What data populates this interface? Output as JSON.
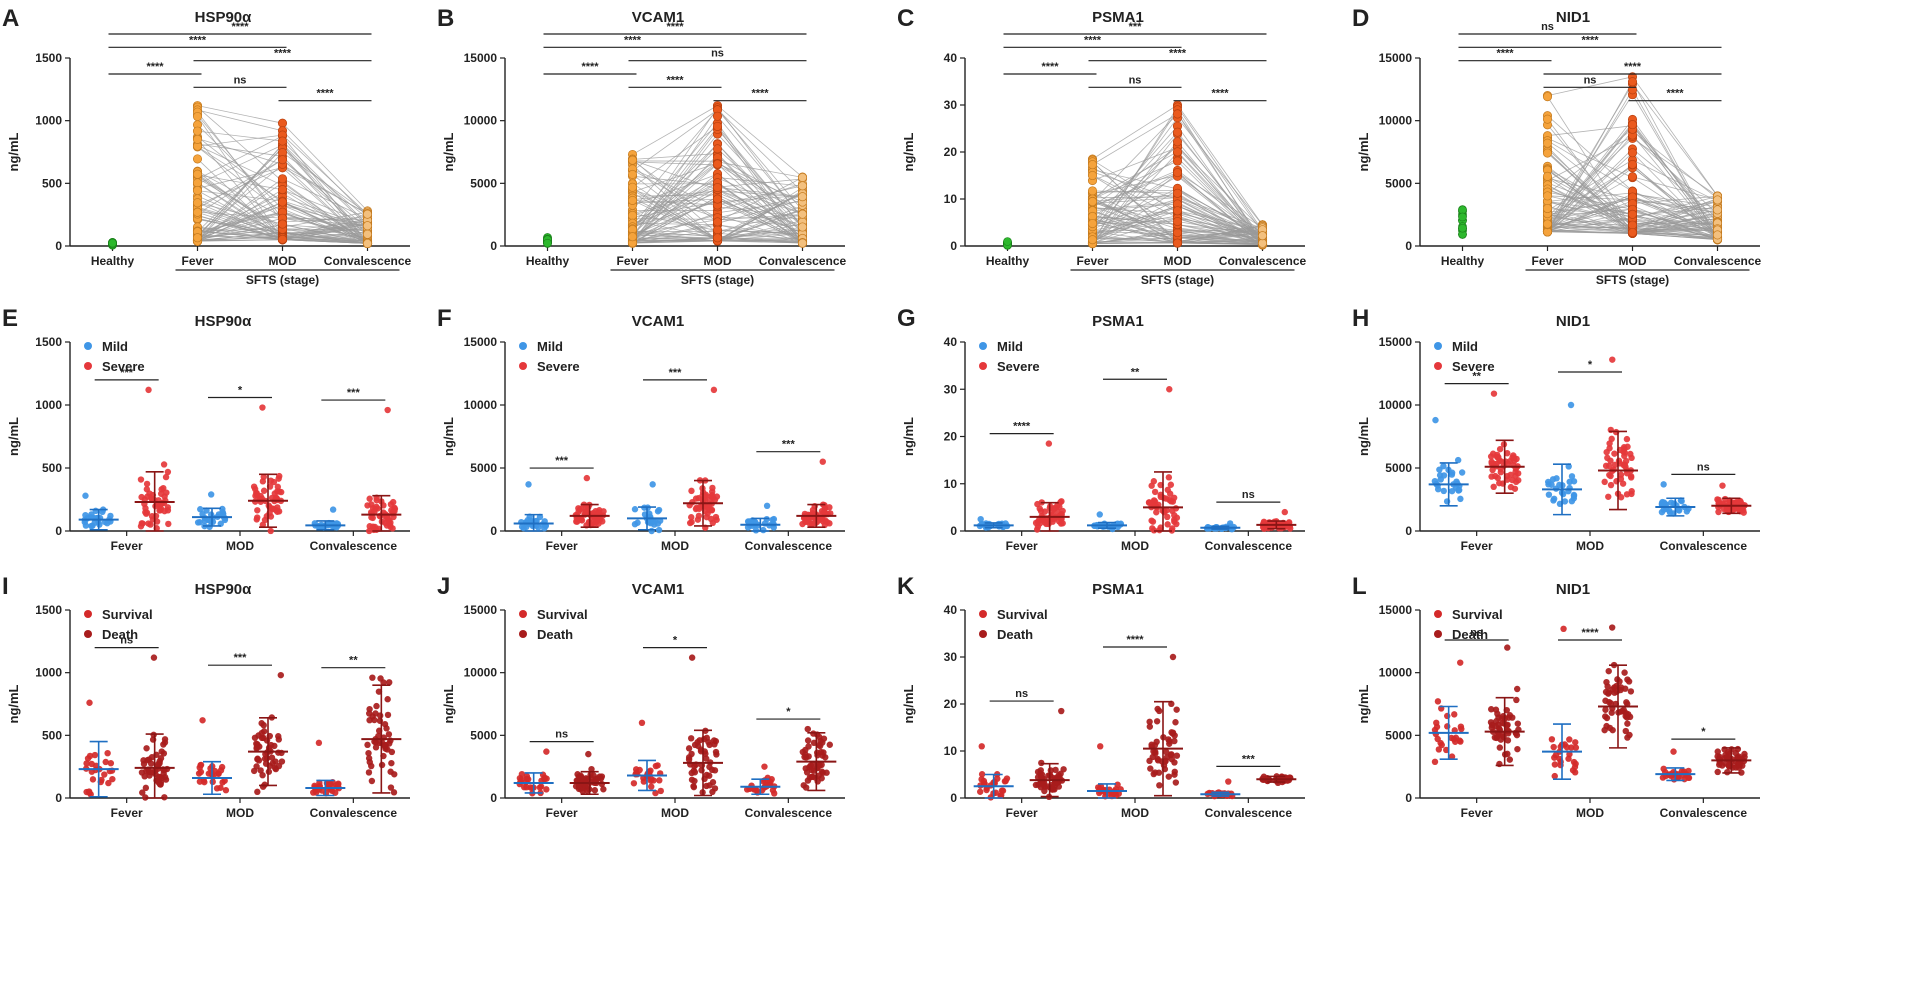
{
  "figure": {
    "colors": {
      "healthy": "#2db82d",
      "fever": "#f5a33c",
      "mod": "#ea5a1e",
      "convalescence": "#f3c07e",
      "mild": "#3f96e6",
      "severe": "#e5383b",
      "survival": "#d42a2a",
      "death": "#a81c1c",
      "pair_line": "#9a9a9a"
    },
    "y_axis_label": "ng/mL"
  },
  "chart_data": [
    {
      "letter": "A",
      "title": "HSP90α",
      "type": "scatter",
      "row": 0,
      "col": 0,
      "categories": [
        "Healthy",
        "Fever",
        "MOD",
        "Convalescence"
      ],
      "group_label": "SFTS (stage)",
      "ylabel": "ng/mL",
      "ylim": [
        0,
        1500
      ],
      "yticks": [
        0,
        500,
        1000,
        1500
      ],
      "series": [
        {
          "name": "Healthy",
          "color_key": "healthy",
          "median": 15,
          "max": 30
        },
        {
          "name": "Fever",
          "color_key": "fever",
          "median": 150,
          "max": 1120
        },
        {
          "name": "MOD",
          "color_key": "mod",
          "median": 200,
          "max": 980
        },
        {
          "name": "Convalescence",
          "color_key": "convalescence",
          "median": 80,
          "max": 280
        }
      ],
      "significance": [
        {
          "from": 0,
          "to": 3,
          "label": "****"
        },
        {
          "from": 0,
          "to": 2,
          "label": "****"
        },
        {
          "from": 1,
          "to": 3,
          "label": "****"
        },
        {
          "from": 0,
          "to": 1,
          "label": "****"
        },
        {
          "from": 1,
          "to": 2,
          "label": "ns"
        },
        {
          "from": 2,
          "to": 3,
          "label": "****"
        }
      ]
    },
    {
      "letter": "B",
      "title": "VCAM1",
      "type": "scatter",
      "row": 0,
      "col": 1,
      "categories": [
        "Healthy",
        "Fever",
        "MOD",
        "Convalescence"
      ],
      "group_label": "SFTS (stage)",
      "ylabel": "ng/mL",
      "ylim": [
        0,
        15000
      ],
      "yticks": [
        0,
        5000,
        10000,
        15000
      ],
      "series": [
        {
          "name": "Healthy",
          "color_key": "healthy",
          "median": 300,
          "max": 700
        },
        {
          "name": "Fever",
          "color_key": "fever",
          "median": 900,
          "max": 7300
        },
        {
          "name": "MOD",
          "color_key": "mod",
          "median": 1600,
          "max": 11200
        },
        {
          "name": "Convalescence",
          "color_key": "convalescence",
          "median": 900,
          "max": 5500
        }
      ],
      "significance": [
        {
          "from": 0,
          "to": 3,
          "label": "****"
        },
        {
          "from": 0,
          "to": 2,
          "label": "****"
        },
        {
          "from": 1,
          "to": 3,
          "label": "ns"
        },
        {
          "from": 0,
          "to": 1,
          "label": "****"
        },
        {
          "from": 1,
          "to": 2,
          "label": "****"
        },
        {
          "from": 2,
          "to": 3,
          "label": "****"
        }
      ]
    },
    {
      "letter": "C",
      "title": "PSMA1",
      "type": "scatter",
      "row": 0,
      "col": 2,
      "categories": [
        "Healthy",
        "Fever",
        "MOD",
        "Convalescence"
      ],
      "group_label": "SFTS (stage)",
      "ylabel": "ng/mL",
      "ylim": [
        0,
        40
      ],
      "yticks": [
        0,
        10,
        20,
        30,
        40
      ],
      "series": [
        {
          "name": "Healthy",
          "color_key": "healthy",
          "median": 0.4,
          "max": 1
        },
        {
          "name": "Fever",
          "color_key": "fever",
          "median": 2,
          "max": 18.5
        },
        {
          "name": "MOD",
          "color_key": "mod",
          "median": 2.5,
          "max": 30
        },
        {
          "name": "Convalescence",
          "color_key": "convalescence",
          "median": 1,
          "max": 4.5
        }
      ],
      "significance": [
        {
          "from": 0,
          "to": 3,
          "label": "***"
        },
        {
          "from": 0,
          "to": 2,
          "label": "****"
        },
        {
          "from": 1,
          "to": 3,
          "label": "****"
        },
        {
          "from": 0,
          "to": 1,
          "label": "****"
        },
        {
          "from": 1,
          "to": 2,
          "label": "ns"
        },
        {
          "from": 2,
          "to": 3,
          "label": "****"
        }
      ]
    },
    {
      "letter": "D",
      "title": "NID1",
      "type": "scatter",
      "row": 0,
      "col": 3,
      "categories": [
        "Healthy",
        "Fever",
        "MOD",
        "Convalescence"
      ],
      "group_label": "SFTS (stage)",
      "ylabel": "ng/mL",
      "ylim": [
        0,
        15000
      ],
      "yticks": [
        0,
        5000,
        10000,
        15000
      ],
      "series": [
        {
          "name": "Healthy",
          "color_key": "healthy",
          "median": 1500,
          "max": 3000
        },
        {
          "name": "Fever",
          "color_key": "fever",
          "median": 4500,
          "max": 12000
        },
        {
          "name": "MOD",
          "color_key": "mod",
          "median": 4000,
          "max": 13500
        },
        {
          "name": "Convalescence",
          "color_key": "convalescence",
          "median": 2000,
          "max": 4000
        }
      ],
      "significance": [
        {
          "from": 0,
          "to": 2,
          "label": "ns"
        },
        {
          "from": 0,
          "to": 3,
          "label": "****"
        },
        {
          "from": 0,
          "to": 1,
          "label": "****"
        },
        {
          "from": 1,
          "to": 3,
          "label": "****"
        },
        {
          "from": 1,
          "to": 2,
          "label": "ns"
        },
        {
          "from": 2,
          "to": 3,
          "label": "****"
        }
      ]
    },
    {
      "letter": "E",
      "title": "HSP90α",
      "type": "scatter",
      "row": 1,
      "col": 0,
      "categories": [
        "Fever",
        "MOD",
        "Convalescence"
      ],
      "legend": [
        {
          "label": "Mild",
          "color_key": "mild"
        },
        {
          "label": "Severe",
          "color_key": "severe"
        }
      ],
      "ylabel": "ng/mL",
      "ylim": [
        0,
        1500
      ],
      "yticks": [
        0,
        500,
        1000,
        1500
      ],
      "pairs": [
        {
          "category": "Fever",
          "a": {
            "mean": 90,
            "sd": 80,
            "max": 280
          },
          "b": {
            "mean": 230,
            "sd": 240,
            "max": 1120
          },
          "sig": "***"
        },
        {
          "category": "MOD",
          "a": {
            "mean": 110,
            "sd": 70,
            "max": 290
          },
          "b": {
            "mean": 240,
            "sd": 210,
            "max": 980
          },
          "sig": "*"
        },
        {
          "category": "Convalescence",
          "a": {
            "mean": 45,
            "sd": 35,
            "max": 170
          },
          "b": {
            "mean": 130,
            "sd": 150,
            "max": 960
          },
          "sig": "***"
        }
      ]
    },
    {
      "letter": "F",
      "title": "VCAM1",
      "type": "scatter",
      "row": 1,
      "col": 1,
      "categories": [
        "Fever",
        "MOD",
        "Convalescence"
      ],
      "legend": [
        {
          "label": "Mild",
          "color_key": "mild"
        },
        {
          "label": "Severe",
          "color_key": "severe"
        }
      ],
      "ylabel": "ng/mL",
      "ylim": [
        0,
        15000
      ],
      "yticks": [
        0,
        5000,
        10000,
        15000
      ],
      "pairs": [
        {
          "category": "Fever",
          "a": {
            "mean": 600,
            "sd": 700,
            "max": 3700
          },
          "b": {
            "mean": 1200,
            "sd": 900,
            "max": 4200
          },
          "sig": "***"
        },
        {
          "category": "MOD",
          "a": {
            "mean": 1000,
            "sd": 900,
            "max": 3700
          },
          "b": {
            "mean": 2200,
            "sd": 1800,
            "max": 11200
          },
          "sig": "***"
        },
        {
          "category": "Convalescence",
          "a": {
            "mean": 500,
            "sd": 500,
            "max": 2000
          },
          "b": {
            "mean": 1200,
            "sd": 900,
            "max": 5500
          },
          "sig": "***"
        }
      ]
    },
    {
      "letter": "G",
      "title": "PSMA1",
      "type": "scatter",
      "row": 1,
      "col": 2,
      "categories": [
        "Fever",
        "MOD",
        "Convalescence"
      ],
      "legend": [
        {
          "label": "Mild",
          "color_key": "mild"
        },
        {
          "label": "Severe",
          "color_key": "severe"
        }
      ],
      "ylabel": "ng/mL",
      "ylim": [
        0,
        40
      ],
      "yticks": [
        0,
        10,
        20,
        30,
        40
      ],
      "pairs": [
        {
          "category": "Fever",
          "a": {
            "mean": 1.2,
            "sd": 0.5,
            "max": 2.5
          },
          "b": {
            "mean": 3,
            "sd": 3,
            "max": 18.5
          },
          "sig": "****"
        },
        {
          "category": "MOD",
          "a": {
            "mean": 1.2,
            "sd": 0.6,
            "max": 3.5
          },
          "b": {
            "mean": 5,
            "sd": 7.5,
            "max": 30
          },
          "sig": "**"
        },
        {
          "category": "Convalescence",
          "a": {
            "mean": 0.7,
            "sd": 0.3,
            "max": 1.6
          },
          "b": {
            "mean": 1.3,
            "sd": 0.8,
            "max": 4
          },
          "sig": "ns"
        }
      ]
    },
    {
      "letter": "H",
      "title": "NID1",
      "type": "scatter",
      "row": 1,
      "col": 3,
      "categories": [
        "Fever",
        "MOD",
        "Convalescence"
      ],
      "legend": [
        {
          "label": "Mild",
          "color_key": "mild"
        },
        {
          "label": "Severe",
          "color_key": "severe"
        }
      ],
      "ylabel": "ng/mL",
      "ylim": [
        0,
        15000
      ],
      "yticks": [
        0,
        5000,
        10000,
        15000
      ],
      "pairs": [
        {
          "category": "Fever",
          "a": {
            "mean": 3700,
            "sd": 1700,
            "max": 8800
          },
          "b": {
            "mean": 5100,
            "sd": 2100,
            "max": 10900
          },
          "sig": "**"
        },
        {
          "category": "MOD",
          "a": {
            "mean": 3300,
            "sd": 2000,
            "max": 10000
          },
          "b": {
            "mean": 4800,
            "sd": 3100,
            "max": 13600
          },
          "sig": "*"
        },
        {
          "category": "Convalescence",
          "a": {
            "mean": 1900,
            "sd": 700,
            "max": 3700
          },
          "b": {
            "mean": 2000,
            "sd": 600,
            "max": 3600
          },
          "sig": "ns"
        }
      ]
    },
    {
      "letter": "I",
      "title": "HSP90α",
      "type": "scatter",
      "row": 2,
      "col": 0,
      "categories": [
        "Fever",
        "MOD",
        "Convalescence"
      ],
      "legend": [
        {
          "label": "Survival",
          "color_key": "survival"
        },
        {
          "label": "Death",
          "color_key": "death"
        }
      ],
      "ylabel": "ng/mL",
      "ylim": [
        0,
        1500
      ],
      "yticks": [
        0,
        500,
        1000,
        1500
      ],
      "pairs": [
        {
          "category": "Fever",
          "a": {
            "mean": 230,
            "sd": 220,
            "max": 760
          },
          "b": {
            "mean": 240,
            "sd": 270,
            "max": 1120
          },
          "sig": "ns"
        },
        {
          "category": "MOD",
          "a": {
            "mean": 160,
            "sd": 130,
            "max": 620
          },
          "b": {
            "mean": 370,
            "sd": 270,
            "max": 980
          },
          "sig": "***"
        },
        {
          "category": "Convalescence",
          "a": {
            "mean": 80,
            "sd": 60,
            "max": 440
          },
          "b": {
            "mean": 470,
            "sd": 430,
            "max": 960
          },
          "sig": "**"
        }
      ]
    },
    {
      "letter": "J",
      "title": "VCAM1",
      "type": "scatter",
      "row": 2,
      "col": 1,
      "categories": [
        "Fever",
        "MOD",
        "Convalescence"
      ],
      "legend": [
        {
          "label": "Survival",
          "color_key": "survival"
        },
        {
          "label": "Death",
          "color_key": "death"
        }
      ],
      "ylabel": "ng/mL",
      "ylim": [
        0,
        15000
      ],
      "yticks": [
        0,
        5000,
        10000,
        15000
      ],
      "pairs": [
        {
          "category": "Fever",
          "a": {
            "mean": 1200,
            "sd": 800,
            "max": 3700
          },
          "b": {
            "mean": 1200,
            "sd": 900,
            "max": 3500
          },
          "sig": "ns"
        },
        {
          "category": "MOD",
          "a": {
            "mean": 1800,
            "sd": 1200,
            "max": 6000
          },
          "b": {
            "mean": 2800,
            "sd": 2600,
            "max": 11200
          },
          "sig": "*"
        },
        {
          "category": "Convalescence",
          "a": {
            "mean": 900,
            "sd": 600,
            "max": 2500
          },
          "b": {
            "mean": 2900,
            "sd": 2300,
            "max": 5500
          },
          "sig": "*"
        }
      ]
    },
    {
      "letter": "K",
      "title": "PSMA1",
      "type": "scatter",
      "row": 2,
      "col": 2,
      "categories": [
        "Fever",
        "MOD",
        "Convalescence"
      ],
      "legend": [
        {
          "label": "Survival",
          "color_key": "survival"
        },
        {
          "label": "Death",
          "color_key": "death"
        }
      ],
      "ylabel": "ng/mL",
      "ylim": [
        0,
        40
      ],
      "yticks": [
        0,
        10,
        20,
        30,
        40
      ],
      "pairs": [
        {
          "category": "Fever",
          "a": {
            "mean": 2.5,
            "sd": 2.5,
            "max": 11
          },
          "b": {
            "mean": 3.8,
            "sd": 3.5,
            "max": 18.5
          },
          "sig": "ns"
        },
        {
          "category": "MOD",
          "a": {
            "mean": 1.5,
            "sd": 1.5,
            "max": 11
          },
          "b": {
            "mean": 10.5,
            "sd": 10,
            "max": 30
          },
          "sig": "****"
        },
        {
          "category": "Convalescence",
          "a": {
            "mean": 0.8,
            "sd": 0.4,
            "max": 3.5
          },
          "b": {
            "mean": 4,
            "sd": 0.6,
            "max": 4.6
          },
          "sig": "***"
        }
      ]
    },
    {
      "letter": "L",
      "title": "NID1",
      "type": "scatter",
      "row": 2,
      "col": 3,
      "categories": [
        "Fever",
        "MOD",
        "Convalescence"
      ],
      "legend": [
        {
          "label": "Survival",
          "color_key": "survival"
        },
        {
          "label": "Death",
          "color_key": "death"
        }
      ],
      "ylabel": "ng/mL",
      "ylim": [
        0,
        15000
      ],
      "yticks": [
        0,
        5000,
        10000,
        15000
      ],
      "pairs": [
        {
          "category": "Fever",
          "a": {
            "mean": 5200,
            "sd": 2100,
            "max": 10800
          },
          "b": {
            "mean": 5300,
            "sd": 2700,
            "max": 12000
          },
          "sig": "ns"
        },
        {
          "category": "MOD",
          "a": {
            "mean": 3700,
            "sd": 2200,
            "max": 13500
          },
          "b": {
            "mean": 7300,
            "sd": 3300,
            "max": 13600
          },
          "sig": "****"
        },
        {
          "category": "Convalescence",
          "a": {
            "mean": 1900,
            "sd": 500,
            "max": 3700
          },
          "b": {
            "mean": 3000,
            "sd": 1000,
            "max": 3900
          },
          "sig": "*"
        }
      ]
    }
  ]
}
